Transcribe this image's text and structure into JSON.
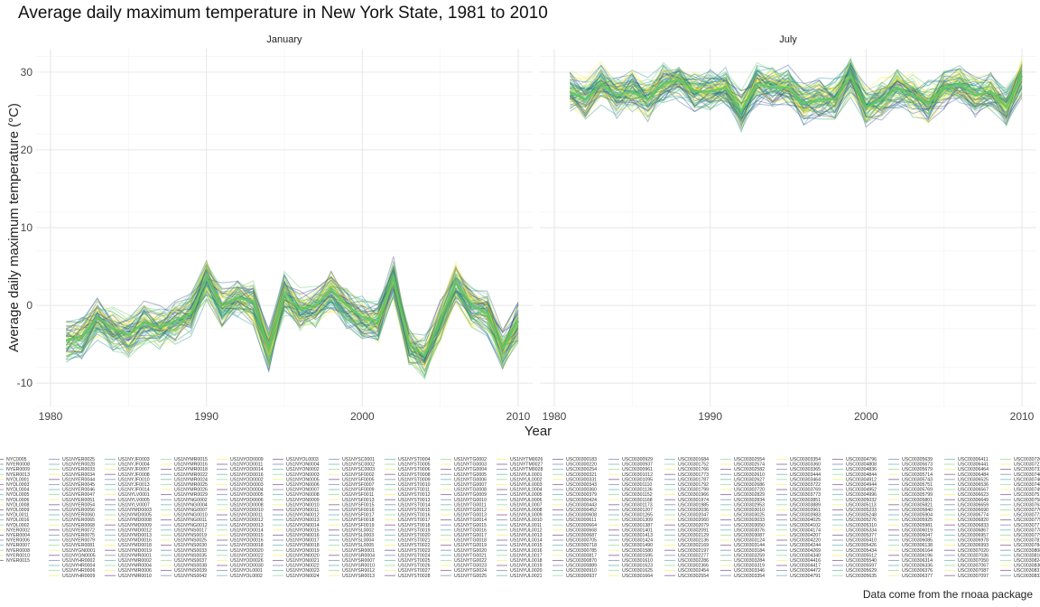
{
  "chart_data": {
    "type": "line",
    "title": "Average daily maximum temperature in New York State, 1981 to 2010",
    "caption": "Data come from the rnoaa package",
    "xlabel": "Year",
    "ylabel": "Average daily maximum temperature (°C)",
    "xlim": [
      1980,
      2010
    ],
    "ylim": [
      -13,
      33
    ],
    "x_ticks": [
      1980,
      1990,
      2000,
      2010
    ],
    "y_ticks": [
      -10,
      0,
      10,
      20,
      30
    ],
    "grid": true,
    "legend_placement": "bottom",
    "palette": [
      "#440154",
      "#3b528b",
      "#21918c",
      "#5ec962",
      "#fde725"
    ],
    "panels": [
      {
        "name": "January",
        "mean_series": [
          {
            "x": 1981,
            "y": -4.5
          },
          {
            "x": 1982,
            "y": -4.0
          },
          {
            "x": 1983,
            "y": -1.5
          },
          {
            "x": 1984,
            "y": -3.0
          },
          {
            "x": 1985,
            "y": -3.8
          },
          {
            "x": 1986,
            "y": -2.2
          },
          {
            "x": 1987,
            "y": -2.8
          },
          {
            "x": 1988,
            "y": -2.0
          },
          {
            "x": 1989,
            "y": -1.0
          },
          {
            "x": 1990,
            "y": 3.5
          },
          {
            "x": 1991,
            "y": 0.0
          },
          {
            "x": 1992,
            "y": 1.0
          },
          {
            "x": 1993,
            "y": 0.5
          },
          {
            "x": 1994,
            "y": -5.5
          },
          {
            "x": 1995,
            "y": 1.5
          },
          {
            "x": 1996,
            "y": -0.5
          },
          {
            "x": 1997,
            "y": 0.0
          },
          {
            "x": 1998,
            "y": 2.0
          },
          {
            "x": 1999,
            "y": 0.0
          },
          {
            "x": 2000,
            "y": -1.5
          },
          {
            "x": 2001,
            "y": -2.0
          },
          {
            "x": 2002,
            "y": 3.5
          },
          {
            "x": 2003,
            "y": -5.0
          },
          {
            "x": 2004,
            "y": -6.5
          },
          {
            "x": 2005,
            "y": -2.0
          },
          {
            "x": 2006,
            "y": 3.0
          },
          {
            "x": 2007,
            "y": 0.0
          },
          {
            "x": 2008,
            "y": -1.0
          },
          {
            "x": 2009,
            "y": -5.5
          },
          {
            "x": 2010,
            "y": -2.0
          }
        ]
      },
      {
        "name": "July",
        "mean_series": [
          {
            "x": 1981,
            "y": 27.5
          },
          {
            "x": 1982,
            "y": 26.5
          },
          {
            "x": 1983,
            "y": 28.5
          },
          {
            "x": 1984,
            "y": 27.0
          },
          {
            "x": 1985,
            "y": 27.5
          },
          {
            "x": 1986,
            "y": 26.5
          },
          {
            "x": 1987,
            "y": 28.5
          },
          {
            "x": 1988,
            "y": 29.0
          },
          {
            "x": 1989,
            "y": 27.5
          },
          {
            "x": 1990,
            "y": 27.5
          },
          {
            "x": 1991,
            "y": 28.0
          },
          {
            "x": 1992,
            "y": 25.0
          },
          {
            "x": 1993,
            "y": 28.5
          },
          {
            "x": 1994,
            "y": 28.0
          },
          {
            "x": 1995,
            "y": 28.0
          },
          {
            "x": 1996,
            "y": 26.0
          },
          {
            "x": 1997,
            "y": 26.5
          },
          {
            "x": 1998,
            "y": 26.5
          },
          {
            "x": 1999,
            "y": 29.5
          },
          {
            "x": 2000,
            "y": 25.5
          },
          {
            "x": 2001,
            "y": 26.5
          },
          {
            "x": 2002,
            "y": 28.0
          },
          {
            "x": 2003,
            "y": 27.0
          },
          {
            "x": 2004,
            "y": 26.0
          },
          {
            "x": 2005,
            "y": 28.0
          },
          {
            "x": 2006,
            "y": 28.5
          },
          {
            "x": 2007,
            "y": 27.0
          },
          {
            "x": 2008,
            "y": 27.5
          },
          {
            "x": 2009,
            "y": 25.5
          },
          {
            "x": 2010,
            "y": 29.5
          }
        ]
      }
    ],
    "legend_columns": [
      [
        "NYC0005",
        "NYER0008",
        "NYER0009",
        "NYER0013",
        "NYDL0001",
        "NYDL0003",
        "NYDL0004",
        "NYDL0005",
        "NYDL0006",
        "NYDL0008",
        "NYDL0009",
        "NYDL0011",
        "NYDL0016",
        "NYDL0002",
        "NYER0002",
        "NYER0004",
        "NYER0006",
        "NYER0007",
        "NYER0008",
        "NYER0010",
        "NYER0015"
      ],
      [
        "US1NYER0025",
        "US1NYER0028",
        "US1NYER0033",
        "US1NYER0034",
        "US1NYER0044",
        "US1NYER0045",
        "US1NYER0046",
        "US1NYER0047",
        "US1NYER0051",
        "US1NYER0054",
        "US1NYER0056",
        "US1NYER0060",
        "US1NYER0065",
        "US1NYER0068",
        "US1NYER0072",
        "US1NYER0075",
        "US1NYER0079",
        "US1NYER0081",
        "US1NYGN0001",
        "US1NYGN0005",
        "US1NYHR0002",
        "US1NYHR0004",
        "US1NYHR0006",
        "US1NYHR0009"
      ],
      [
        "US1NYJF0003",
        "US1NYJF0004",
        "US1NYJF0007",
        "US1NYJF0008",
        "US1NYJF0010",
        "US1NYJF0013",
        "US1NYJF0014",
        "US1NYLV0001",
        "US1NYLV0005",
        "US1NYLV0007",
        "US1NYMD0003",
        "US1NYMD0005",
        "US1NYMD0008",
        "US1NYMD0009",
        "US1NYMD0012",
        "US1NYMD0013",
        "US1NYMD0016",
        "US1NYMD0018",
        "US1NYMD0019",
        "US1NYMR0001",
        "US1NYMR0002",
        "US1NYMR0004",
        "US1NYMR0006",
        "US1NYMR0010"
      ],
      [
        "US1NYMR0015",
        "US1NYMR0016",
        "US1NYMR0018",
        "US1NYMR0022",
        "US1NYMR0024",
        "US1NYMR0025",
        "US1NYMR0026",
        "US1NYMR0029",
        "US1NYNG0002",
        "US1NYNG0004",
        "US1NYNG0007",
        "US1NYNG0010",
        "US1NYNG0011",
        "US1NYNG0012",
        "US1NYNS0017",
        "US1NYNS0019",
        "US1NYNS0025",
        "US1NYNS0030",
        "US1NYNS0033",
        "US1NYNS0035",
        "US1NYNS0037",
        "US1NYNS0038",
        "US1NYNS0039",
        "US1NYNS0042"
      ],
      [
        "US1NYOD0009",
        "US1NYOD0011",
        "US1NYOD0014",
        "US1NYOD0016",
        "US1NYOD0002",
        "US1NYOD0003",
        "US1NYOD0004",
        "US1NYOD0005",
        "US1NYOD0006",
        "US1NYOD0008",
        "US1NYOD0010",
        "US1NYOD0011",
        "US1NYOD0012",
        "US1NYOD0013",
        "US1NYOD0014",
        "US1NYOD0015",
        "US1NYOD0016",
        "US1NYOD0018",
        "US1NYOD0020",
        "US1NYOD0022",
        "US1NYOD0026",
        "US1NYOD0030",
        "US1NYOL0001",
        "US1NYOL0002"
      ],
      [
        "US1NYOL0003",
        "US1NYON0004",
        "US1NYON0002",
        "US1NYON0003",
        "US1NYON0005",
        "US1NYON0006",
        "US1NYON0007",
        "US1NYON0008",
        "US1NYON0009",
        "US1NYON0010",
        "US1NYON0011",
        "US1NYON0012",
        "US1NYON0013",
        "US1NYON0014",
        "US1NYON0015",
        "US1NYON0016",
        "US1NYON0017",
        "US1NYON0018",
        "US1NYON0019",
        "US1NYON0020",
        "US1NYON0021",
        "US1NYON0022",
        "US1NYON0023",
        "US1NYON0024"
      ],
      [
        "US1NYSC0001",
        "US1NYSC0002",
        "US1NYSC0003",
        "US1NYSF0002",
        "US1NYSF0005",
        "US1NYSF0007",
        "US1NYSF0009",
        "US1NYSF0011",
        "US1NYSF0013",
        "US1NYSF0015",
        "US1NYSF0016",
        "US1NYSF0017",
        "US1NYSF0018",
        "US1NYSF0019",
        "US1NYSL0002",
        "US1NYSL0003",
        "US1NYSL0004",
        "US1NYSL0005",
        "US1NYSR0001",
        "US1NYSR0004",
        "US1NYSR0007",
        "US1NYSR0010",
        "US1NYSR0012",
        "US1NYSR0013"
      ],
      [
        "US1NYST0004",
        "US1NYST0005",
        "US1NYST0006",
        "US1NYST0008",
        "US1NYST0009",
        "US1NYST0010",
        "US1NYST0011",
        "US1NYST0012",
        "US1NYST0013",
        "US1NYST0014",
        "US1NYST0015",
        "US1NYST0016",
        "US1NYST0017",
        "US1NYST0018",
        "US1NYST0019",
        "US1NYST0020",
        "US1NYST0021",
        "US1NYST0022",
        "US1NYST0023",
        "US1NYST0024",
        "US1NYST0025",
        "US1NYST0026",
        "US1NYST0027",
        "US1NYST0028"
      ],
      [
        "US1NYTG0002",
        "US1NYTG0003",
        "US1NYTG0004",
        "US1NYTG0005",
        "US1NYTG0006",
        "US1NYTG0007",
        "US1NYTG0008",
        "US1NYTG0009",
        "US1NYTG0010",
        "US1NYTG0011",
        "US1NYTG0012",
        "US1NYTG0013",
        "US1NYTG0014",
        "US1NYTG0015",
        "US1NYTG0016",
        "US1NYTG0017",
        "US1NYTG0018",
        "US1NYTG0019",
        "US1NYTG0020",
        "US1NYTG0021",
        "US1NYTG0022",
        "US1NYTG0023",
        "US1NYTG0024",
        "US1NYTG0025"
      ],
      [
        "US1NYTM0026",
        "US1NYTM0027",
        "US1NYTM0028",
        "US1NYUL0001",
        "US1NYUL0002",
        "US1NYUL0003",
        "US1NYUL0004",
        "US1NYUL0005",
        "US1NYUL0006",
        "US1NYUL0007",
        "US1NYUL0008",
        "US1NYUL0009",
        "US1NYUL0010",
        "US1NYUL0011",
        "US1NYUL0012",
        "US1NYUL0013",
        "US1NYUL0014",
        "US1NYUL0015",
        "US1NYUL0016",
        "US1NYUL0017",
        "US1NYUL0018",
        "US1NYUL0019",
        "US1NYUL0020",
        "US1NYUL0021"
      ],
      [
        "USC00300183",
        "USC00300220",
        "USC00300254",
        "USC00300321",
        "USC00300331",
        "USC00300343",
        "USC00300360",
        "USC00300379",
        "USC00300424",
        "USC00300443",
        "USC00300452",
        "USC00300608",
        "USC00300611",
        "USC00300664",
        "USC00300668",
        "USC00300687",
        "USC00300705",
        "USC00300718",
        "USC00300785",
        "USC00300817",
        "USC00300870",
        "USC00300889",
        "USC00300910",
        "USC00300937"
      ],
      [
        "USC00300929",
        "USC00300937",
        "USC00300961",
        "USC00301012",
        "USC00301095",
        "USC00301110",
        "USC00301136",
        "USC00301152",
        "USC00301168",
        "USC00301173",
        "USC00301207",
        "USC00301265",
        "USC00301309",
        "USC00301387",
        "USC00301401",
        "USC00301413",
        "USC00301424",
        "USC00301490",
        "USC00301580",
        "USC00301595",
        "USC00301610",
        "USC00301623",
        "USC00301625",
        "USC00301664"
      ],
      [
        "USC00301684",
        "USC00301752",
        "USC00301766",
        "USC00301773",
        "USC00301787",
        "USC00301792",
        "USC00301799",
        "USC00301966",
        "USC00301974",
        "USC00301985",
        "USC00302036",
        "USC00302047",
        "USC00302060",
        "USC00302079",
        "USC00302091",
        "USC00302129",
        "USC00302136",
        "USC00302169",
        "USC00302197",
        "USC00302277",
        "USC00302286",
        "USC00302366",
        "USC00302454",
        "USC00302554"
      ],
      [
        "USC00302554",
        "USC00302574",
        "USC00302582",
        "USC00302610",
        "USC00302627",
        "USC00302686",
        "USC00302720",
        "USC00302829",
        "USC00302834",
        "USC00302953",
        "USC00303010",
        "USC00303025",
        "USC00303033",
        "USC00303050",
        "USC00303076",
        "USC00303087",
        "USC00303124",
        "USC00303144",
        "USC00303184",
        "USC00303259",
        "USC00303284",
        "USC00303319",
        "USC00303346",
        "USC00303354"
      ],
      [
        "USC00303354",
        "USC00303360",
        "USC00303365",
        "USC00303444",
        "USC00303464",
        "USC00303722",
        "USC00303769",
        "USC00303773",
        "USC00303851",
        "USC00303889",
        "USC00303961",
        "USC00303983",
        "USC00304025",
        "USC00304102",
        "USC00304174",
        "USC00304207",
        "USC00304220",
        "USC00304244",
        "USC00304269",
        "USC00304340",
        "USC00304416",
        "USC00304417",
        "USC00304472",
        "USC00304791"
      ],
      [
        "USC00304796",
        "USC00304808",
        "USC00304836",
        "USC00304844",
        "USC00304912",
        "USC00304944",
        "USC00304952",
        "USC00304996",
        "USC00305032",
        "USC00305113",
        "USC00305233",
        "USC00305248",
        "USC00305276",
        "USC00305310",
        "USC00305334",
        "USC00305377",
        "USC00305410",
        "USC00305426",
        "USC00305434",
        "USC00305512",
        "USC00305540",
        "USC00305597",
        "USC00305629",
        "USC00305635"
      ],
      [
        "USC00305639",
        "USC00305673",
        "USC00305679",
        "USC00305714",
        "USC00305743",
        "USC00305751",
        "USC00305769",
        "USC00305799",
        "USC00305801",
        "USC00305821",
        "USC00305840",
        "USC00305904",
        "USC00305925",
        "USC00305981",
        "USC00306019",
        "USC00306047",
        "USC00306085",
        "USC00306138",
        "USC00306164",
        "USC00306196",
        "USC00306314",
        "USC00306336",
        "USC00306376",
        "USC00306377"
      ],
      [
        "USC00306411",
        "USC00306441",
        "USC00306464",
        "USC00306484",
        "USC00306525",
        "USC00306536",
        "USC00306567",
        "USC00306623",
        "USC00306649",
        "USC00306659",
        "USC00306690",
        "USC00306774",
        "USC00306820",
        "USC00306833",
        "USC00306867",
        "USC00306957",
        "USC00306978",
        "USC00306993",
        "USC00307020",
        "USC00307036",
        "USC00307050",
        "USC00307067",
        "USC00307087",
        "USC00307097"
      ],
      [
        "USC00307260",
        "USC00307274",
        "USC00307329",
        "USC00307405",
        "USC00307464",
        "USC00307484",
        "USC00307497",
        "USC00307514",
        "USC00307587",
        "USC00307633",
        "USC00307705",
        "USC00307721",
        "USC00307750",
        "USC00307772",
        "USC00307780",
        "USC00307799",
        "USC00307818",
        "USC00307842",
        "USC00308088",
        "USC00308160",
        "USC00308244",
        "USC00308304",
        "USC00308317",
        "USC00308323"
      ]
    ]
  }
}
